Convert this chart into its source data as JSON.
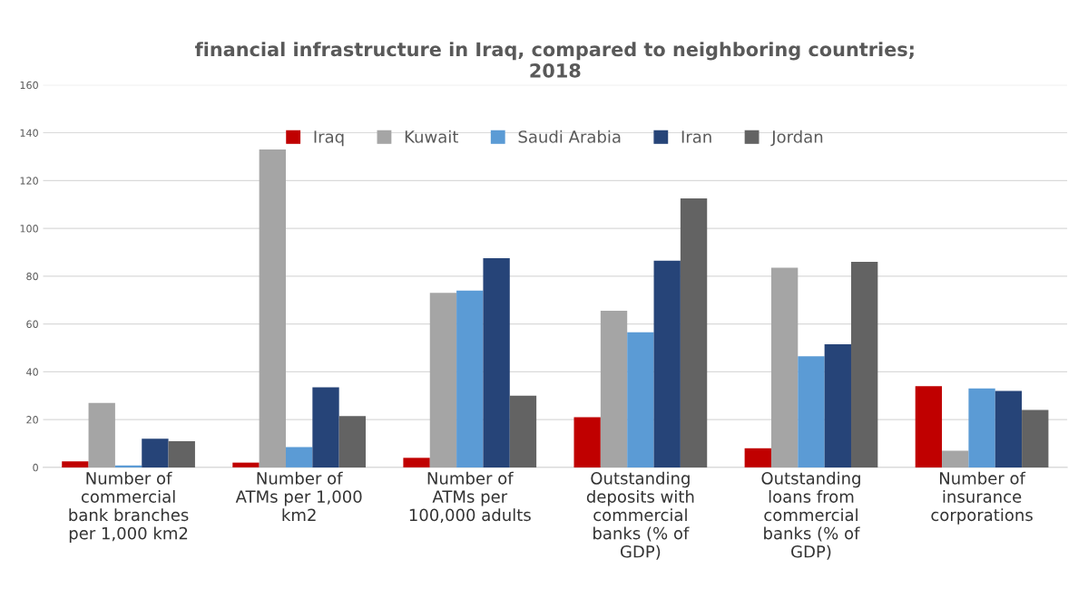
{
  "chart_data": {
    "type": "bar",
    "title": "financial infrastructure in Iraq, compared to neighboring countries;\n2018",
    "categories": [
      "Number of\ncommercial\nbank branches\nper 1,000 km2",
      "Number of\nATMs per 1,000\nkm2",
      "Number of\nATMs per\n100,000 adults",
      "Outstanding\ndeposits with\ncommercial\nbanks (% of\nGDP)",
      "Outstanding\nloans from\ncommercial\nbanks (% of\nGDP)",
      "Number of\ninsurance\ncorporations"
    ],
    "series": [
      {
        "name": "Iraq",
        "color": "#c00000",
        "values": [
          2.5,
          2,
          4,
          21,
          8,
          34
        ]
      },
      {
        "name": "Kuwait",
        "color": "#a5a5a5",
        "values": [
          27,
          133,
          73,
          65.5,
          83.5,
          7
        ]
      },
      {
        "name": "Saudi Arabia",
        "color": "#5b9bd5",
        "values": [
          0.8,
          8.5,
          74,
          56.5,
          46.5,
          33
        ]
      },
      {
        "name": "Iran",
        "color": "#264478",
        "values": [
          12,
          33.5,
          87.5,
          86.5,
          51.5,
          32
        ]
      },
      {
        "name": "Jordan",
        "color": "#636363",
        "values": [
          11,
          21.5,
          30,
          112.5,
          86,
          24
        ]
      }
    ],
    "ylim": [
      0,
      160
    ],
    "yticks": [
      0,
      20,
      40,
      60,
      80,
      100,
      120,
      140,
      160
    ],
    "grid": "y",
    "legend": "top"
  }
}
